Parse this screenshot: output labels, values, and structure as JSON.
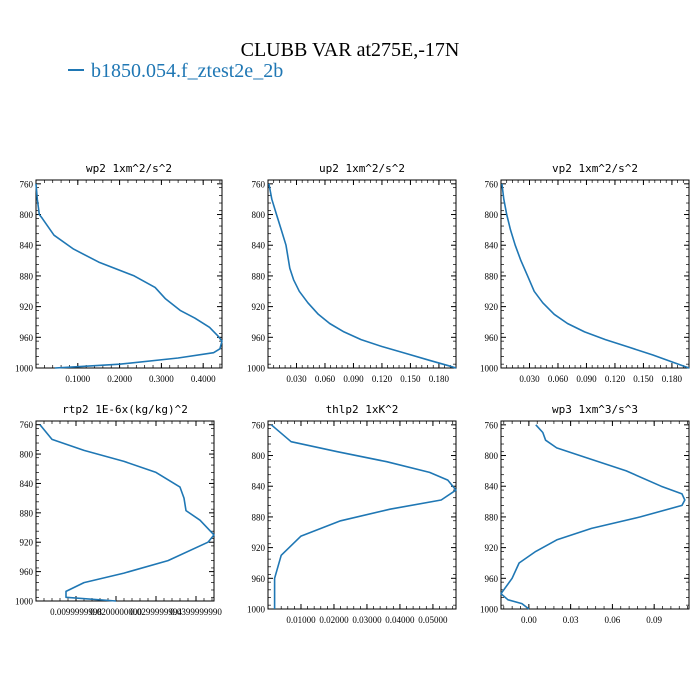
{
  "figure": {
    "title": "CLUBB VAR at275E,-17N",
    "legend_label": "b1850.054.f_ztest2e_2b",
    "line_color": "#1f77b4"
  },
  "chart_data": [
    {
      "type": "line",
      "title": "wp2  1xm^2/s^2",
      "xlim": [
        0.0,
        0.445
      ],
      "ylim": [
        1000,
        755
      ],
      "xticks": [
        "0.1000",
        "0.2000",
        "0.3000",
        "0.4000"
      ],
      "xtick_values": [
        0.1,
        0.2,
        0.3,
        0.4
      ],
      "yticks": [
        "760",
        "800",
        "840",
        "880",
        "920",
        "960",
        "1000"
      ],
      "ytick_values": [
        760,
        800,
        840,
        880,
        920,
        960,
        1000
      ],
      "grid": false,
      "series": [
        {
          "name": "b1850.054.f_ztest2e_2b",
          "x": [
            0.0,
            0.003,
            0.008,
            0.015,
            0.043,
            0.09,
            0.15,
            0.235,
            0.285,
            0.31,
            0.345,
            0.38,
            0.415,
            0.435,
            0.445,
            0.44,
            0.425,
            0.34,
            0.2,
            0.08,
            0.045
          ],
          "y": [
            760,
            780,
            800,
            805,
            827,
            845,
            862,
            880,
            895,
            910,
            925,
            935,
            947,
            958,
            965,
            975,
            980,
            987,
            995,
            999,
            1000
          ]
        }
      ]
    },
    {
      "type": "line",
      "title": "up2  1xm^2/s^2",
      "xlim": [
        0.0,
        0.198
      ],
      "ylim": [
        1000,
        755
      ],
      "xticks": [
        "0.030",
        "0.060",
        "0.090",
        "0.120",
        "0.150",
        "0.180"
      ],
      "xtick_values": [
        0.03,
        0.06,
        0.09,
        0.12,
        0.15,
        0.18
      ],
      "yticks": [
        "760",
        "800",
        "840",
        "880",
        "920",
        "960",
        "1000"
      ],
      "ytick_values": [
        760,
        800,
        840,
        880,
        920,
        960,
        1000
      ],
      "grid": false,
      "series": [
        {
          "name": "b1850.054.f_ztest2e_2b",
          "x": [
            0.001,
            0.004,
            0.009,
            0.014,
            0.019,
            0.021,
            0.023,
            0.027,
            0.033,
            0.042,
            0.053,
            0.065,
            0.08,
            0.098,
            0.12,
            0.145,
            0.17,
            0.19,
            0.198
          ],
          "y": [
            760,
            780,
            800,
            820,
            840,
            855,
            870,
            885,
            900,
            915,
            930,
            942,
            953,
            963,
            972,
            981,
            990,
            997,
            1000
          ]
        }
      ]
    },
    {
      "type": "line",
      "title": "vp2  1xm^2/s^2",
      "xlim": [
        0.0,
        0.198
      ],
      "ylim": [
        1000,
        755
      ],
      "xticks": [
        "0.030",
        "0.060",
        "0.090",
        "0.120",
        "0.150",
        "0.180"
      ],
      "xtick_values": [
        0.03,
        0.06,
        0.09,
        0.12,
        0.15,
        0.18
      ],
      "yticks": [
        "760",
        "800",
        "840",
        "880",
        "920",
        "960",
        "1000"
      ],
      "ytick_values": [
        760,
        800,
        840,
        880,
        920,
        960,
        1000
      ],
      "grid": false,
      "series": [
        {
          "name": "b1850.054.f_ztest2e_2b",
          "x": [
            0.001,
            0.003,
            0.006,
            0.01,
            0.015,
            0.021,
            0.028,
            0.035,
            0.044,
            0.056,
            0.07,
            0.088,
            0.11,
            0.135,
            0.16,
            0.18,
            0.198
          ],
          "y": [
            760,
            780,
            800,
            820,
            840,
            860,
            880,
            900,
            915,
            930,
            942,
            953,
            963,
            973,
            983,
            992,
            1000
          ]
        }
      ]
    },
    {
      "type": "line",
      "title": "rtp2  1E-6x(kg/kg)^2",
      "xlim": [
        0.0,
        0.0445
      ],
      "ylim": [
        1000,
        755
      ],
      "xticks": [
        "0.0099999998",
        "0.0200000000",
        "0.0299999994",
        "0.0399999990"
      ],
      "xtick_values": [
        0.01,
        0.02,
        0.03,
        0.04
      ],
      "yticks": [
        "760",
        "800",
        "840",
        "880",
        "920",
        "960",
        "1000"
      ],
      "ytick_values": [
        760,
        800,
        840,
        880,
        920,
        960,
        1000
      ],
      "grid": false,
      "series": [
        {
          "name": "b1850.054.f_ztest2e_2b",
          "x": [
            0.001,
            0.004,
            0.012,
            0.022,
            0.03,
            0.036,
            0.037,
            0.0375,
            0.041,
            0.0445,
            0.043,
            0.033,
            0.022,
            0.012,
            0.0075,
            0.0075,
            0.02
          ],
          "y": [
            760,
            780,
            795,
            810,
            825,
            845,
            860,
            877,
            890,
            910,
            920,
            945,
            962,
            975,
            987,
            995,
            1000
          ]
        }
      ]
    },
    {
      "type": "line",
      "title": "thlp2  1xK^2",
      "xlim": [
        0.0,
        0.057
      ],
      "ylim": [
        1000,
        755
      ],
      "xticks": [
        "0.01000",
        "0.02000",
        "0.03000",
        "0.04000",
        "0.05000"
      ],
      "xtick_values": [
        0.01,
        0.02,
        0.03,
        0.04,
        0.05
      ],
      "yticks": [
        "760",
        "800",
        "840",
        "880",
        "920",
        "960",
        "1000"
      ],
      "ytick_values": [
        760,
        800,
        840,
        880,
        920,
        960,
        1000
      ],
      "grid": false,
      "series": [
        {
          "name": "b1850.054.f_ztest2e_2b",
          "x": [
            0.001,
            0.007,
            0.021,
            0.036,
            0.049,
            0.0545,
            0.057,
            0.0525,
            0.037,
            0.022,
            0.01,
            0.004,
            0.002,
            0.002
          ],
          "y": [
            760,
            782,
            795,
            808,
            822,
            832,
            845,
            858,
            870,
            885,
            905,
            930,
            960,
            1000
          ]
        }
      ]
    },
    {
      "type": "line",
      "title": "wp3  1xm^3/s^3",
      "xlim": [
        -0.02,
        0.115
      ],
      "ylim": [
        1000,
        755
      ],
      "xticks": [
        "0.00",
        "0.03",
        "0.06",
        "0.09"
      ],
      "xtick_values": [
        0.0,
        0.03,
        0.06,
        0.09
      ],
      "yticks": [
        "760",
        "800",
        "840",
        "880",
        "920",
        "960",
        "1000"
      ],
      "ytick_values": [
        760,
        800,
        840,
        880,
        920,
        960,
        1000
      ],
      "grid": false,
      "series": [
        {
          "name": "b1850.054.f_ztest2e_2b",
          "x": [
            0.005,
            0.01,
            0.012,
            0.02,
            0.04,
            0.07,
            0.095,
            0.11,
            0.112,
            0.11,
            0.08,
            0.045,
            0.02,
            0.005,
            -0.007,
            -0.012,
            -0.02,
            -0.015,
            -0.005,
            0.0
          ],
          "y": [
            760,
            770,
            780,
            790,
            802,
            820,
            840,
            850,
            858,
            865,
            880,
            895,
            910,
            925,
            940,
            960,
            980,
            988,
            993,
            1000
          ]
        }
      ]
    }
  ]
}
